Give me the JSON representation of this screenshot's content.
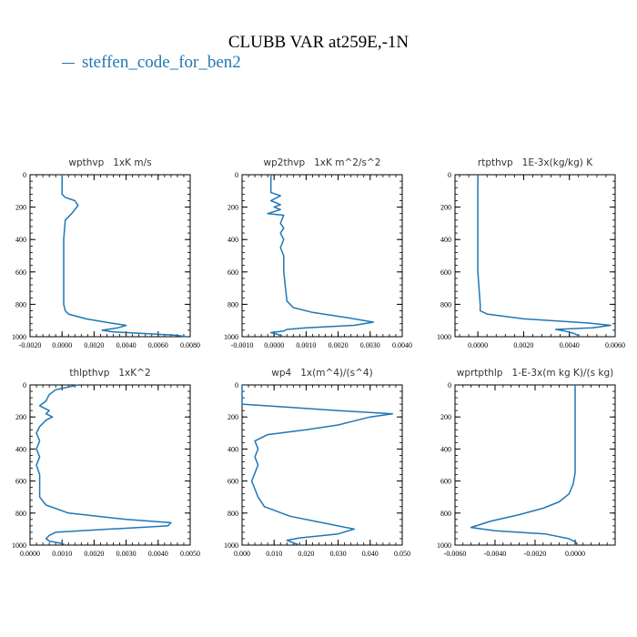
{
  "title": "CLUBB VAR at259E,-1N",
  "legend": {
    "label": "steffen_code_for_ben2",
    "color": "#1f77b4"
  },
  "chart_data": [
    {
      "type": "line",
      "title": "wpthvp   1xK m/s",
      "xlim": [
        -0.002,
        0.008
      ],
      "xticks": [
        -0.002,
        0.0,
        0.002,
        0.004,
        0.006,
        0.008
      ],
      "xtick_labels": [
        "-0.0020",
        "0.0000",
        "0.0020",
        "0.0040",
        "0.0060",
        "0.0080"
      ],
      "ylim": [
        0,
        1000
      ],
      "yticks": [
        0,
        200,
        400,
        600,
        800,
        1000
      ],
      "y_reversed": true,
      "series": [
        {
          "x": [
            0.0,
            0.0,
            0.0002,
            0.0008,
            0.001,
            0.0006,
            0.0002,
            0.0001,
            0.0001,
            0.0001,
            0.0002,
            0.0004,
            0.0015,
            0.003,
            0.004,
            0.0035,
            0.0025,
            0.0032,
            0.005,
            0.007,
            0.0078
          ],
          "y": [
            0,
            120,
            140,
            160,
            190,
            240,
            280,
            400,
            600,
            800,
            840,
            860,
            890,
            915,
            930,
            945,
            960,
            970,
            980,
            990,
            1000
          ]
        }
      ]
    },
    {
      "type": "line",
      "title": "wp2thvp   1xK m^2/s^2",
      "xlim": [
        -0.001,
        0.004
      ],
      "xticks": [
        -0.001,
        0.0,
        0.001,
        0.002,
        0.003,
        0.004
      ],
      "xtick_labels": [
        "-0.0010",
        "0.0000",
        "0.0010",
        "0.0020",
        "0.0030",
        "0.0040"
      ],
      "ylim": [
        0,
        1000
      ],
      "yticks": [
        0,
        200,
        400,
        600,
        800,
        1000
      ],
      "y_reversed": true,
      "series": [
        {
          "x": [
            -0.0001,
            -0.0001,
            0.0002,
            -0.0001,
            0.0002,
            0.0,
            0.0002,
            -0.0002,
            0.0003,
            0.0002,
            0.0003,
            0.0002,
            0.0003,
            0.0002,
            0.0003,
            0.0003,
            0.0004,
            0.0006,
            0.0012,
            0.0022,
            0.0031,
            0.0025,
            0.001,
            0.0004,
            0.0003,
            -0.0001,
            0.0001,
            0.0003
          ],
          "y": [
            0,
            110,
            130,
            160,
            185,
            200,
            215,
            240,
            250,
            300,
            330,
            360,
            400,
            450,
            500,
            600,
            780,
            820,
            850,
            880,
            910,
            930,
            945,
            955,
            965,
            975,
            985,
            1000
          ]
        }
      ]
    },
    {
      "type": "line",
      "title": "rtpthvp   1E-3x(kg/kg) K",
      "xlim": [
        -0.001,
        0.006
      ],
      "xticks": [
        0.0,
        0.002,
        0.004,
        0.006
      ],
      "xtick_labels": [
        "0.0000",
        "0.0020",
        "0.0040",
        "0.0060"
      ],
      "ylim": [
        0,
        1000
      ],
      "yticks": [
        0,
        200,
        400,
        600,
        800,
        1000
      ],
      "y_reversed": true,
      "series": [
        {
          "x": [
            0.0,
            0.0,
            0.0,
            0.0001,
            0.0001,
            0.0004,
            0.002,
            0.0048,
            0.0058,
            0.005,
            0.0034,
            0.0038,
            0.0042,
            0.0045
          ],
          "y": [
            0,
            300,
            600,
            800,
            840,
            860,
            890,
            915,
            930,
            945,
            955,
            965,
            980,
            1000
          ]
        }
      ]
    },
    {
      "type": "line",
      "title": "thlpthvp   1xK^2",
      "xlim": [
        0.0,
        0.005
      ],
      "xticks": [
        0.0,
        0.001,
        0.002,
        0.003,
        0.004,
        0.005
      ],
      "xtick_labels": [
        "0.0000",
        "0.0010",
        "0.0020",
        "0.0030",
        "0.0040",
        "0.0050"
      ],
      "ylim": [
        0,
        1000
      ],
      "yticks": [
        0,
        200,
        400,
        600,
        800,
        1000
      ],
      "y_reversed": true,
      "series": [
        {
          "x": [
            0.0015,
            0.0008,
            0.0006,
            0.0005,
            0.0003,
            0.0006,
            0.0005,
            0.0007,
            0.0005,
            0.0003,
            0.0002,
            0.0003,
            0.0002,
            0.0003,
            0.0002,
            0.0003,
            0.0003,
            0.0005,
            0.0012,
            0.003,
            0.0044,
            0.0043,
            0.0025,
            0.0008,
            0.0006,
            0.0005,
            0.0006,
            0.001,
            0.0011
          ],
          "y": [
            0,
            30,
            60,
            100,
            130,
            160,
            180,
            200,
            220,
            260,
            300,
            350,
            400,
            450,
            500,
            560,
            700,
            750,
            800,
            840,
            860,
            880,
            900,
            920,
            940,
            960,
            975,
            990,
            1000
          ]
        }
      ]
    },
    {
      "type": "line",
      "title": "wp4   1x(m^4)/(s^4)",
      "xlim": [
        0.0,
        0.05
      ],
      "xticks": [
        0.0,
        0.01,
        0.02,
        0.03,
        0.04,
        0.05
      ],
      "xtick_labels": [
        "0.000",
        "0.010",
        "0.020",
        "0.030",
        "0.040",
        "0.050"
      ],
      "ylim": [
        0,
        1000
      ],
      "yticks": [
        0,
        200,
        400,
        600,
        800,
        1000
      ],
      "y_reversed": true,
      "series": [
        {
          "x": [
            0.0,
            0.0,
            0.015,
            0.03,
            0.047,
            0.04,
            0.03,
            0.02,
            0.008,
            0.004,
            0.005,
            0.004,
            0.005,
            0.004,
            0.003,
            0.004,
            0.005,
            0.007,
            0.015,
            0.025,
            0.035,
            0.03,
            0.018,
            0.014,
            0.016,
            0.018
          ],
          "y": [
            0,
            120,
            140,
            160,
            180,
            200,
            250,
            280,
            310,
            350,
            400,
            450,
            500,
            550,
            600,
            650,
            700,
            760,
            820,
            860,
            900,
            930,
            955,
            970,
            985,
            1000
          ]
        }
      ]
    },
    {
      "type": "line",
      "title": "wprtpthlp   1-E-3x(m kg K)/(s kg)",
      "xlim": [
        -0.006,
        0.002
      ],
      "xticks": [
        -0.006,
        -0.004,
        -0.002,
        0.0
      ],
      "xtick_labels": [
        "-0.0060",
        "-0.0040",
        "-0.0020",
        "0.0000"
      ],
      "ylim": [
        0,
        1000
      ],
      "yticks": [
        0,
        200,
        400,
        600,
        800,
        1000
      ],
      "y_reversed": true,
      "series": [
        {
          "x": [
            0.0,
            0.0,
            0.0,
            -0.0001,
            -0.0003,
            -0.0008,
            -0.0016,
            -0.0028,
            -0.0042,
            -0.0052,
            -0.004,
            -0.0015,
            -0.0003,
            0.0,
            0.0001,
            0.0
          ],
          "y": [
            0,
            300,
            550,
            620,
            680,
            730,
            770,
            810,
            850,
            890,
            910,
            930,
            960,
            980,
            990,
            1000
          ]
        }
      ]
    }
  ]
}
